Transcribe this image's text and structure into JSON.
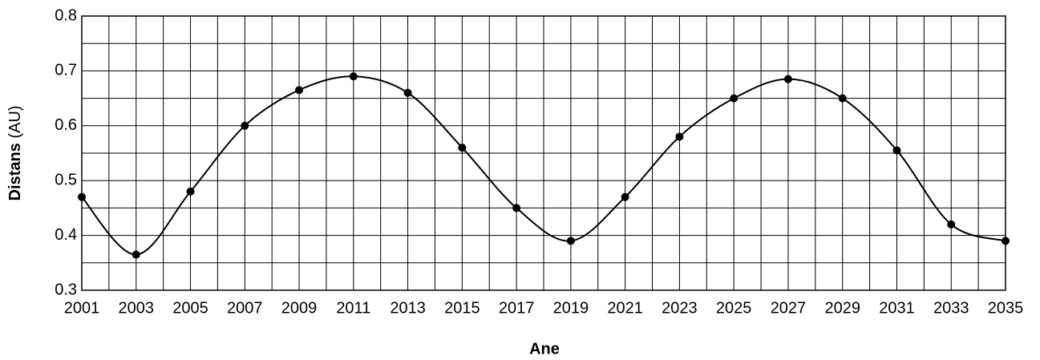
{
  "chart_data": {
    "type": "line",
    "xlabel": "Ane",
    "ylabel": {
      "bold": "Distans",
      "normal": "(AU)"
    },
    "x": [
      2001,
      2003,
      2005,
      2007,
      2009,
      2011,
      2013,
      2015,
      2017,
      2019,
      2021,
      2023,
      2025,
      2027,
      2029,
      2031,
      2033,
      2035
    ],
    "series": [
      {
        "color": "#000000",
        "values": [
          0.47,
          0.365,
          0.48,
          0.6,
          0.665,
          0.69,
          0.66,
          0.56,
          0.45,
          0.39,
          0.47,
          0.58,
          0.65,
          0.685,
          0.65,
          0.555,
          0.42,
          0.39
        ]
      }
    ],
    "xlim": [
      2001,
      2035
    ],
    "ylim": [
      0.3,
      0.8
    ],
    "xticks": [
      2001,
      2003,
      2005,
      2007,
      2009,
      2011,
      2013,
      2015,
      2017,
      2019,
      2021,
      2023,
      2025,
      2027,
      2029,
      2031,
      2033,
      2035
    ],
    "yticks": [
      0.3,
      0.4,
      0.5,
      0.6,
      0.7,
      0.8
    ],
    "grid": true
  }
}
